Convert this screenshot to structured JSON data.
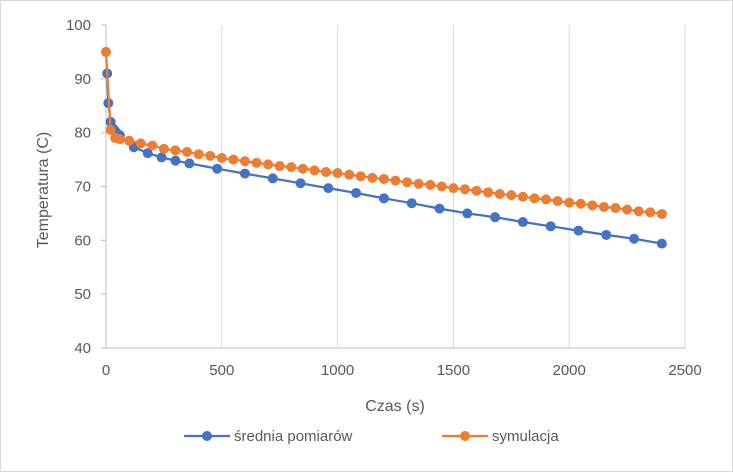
{
  "chart_data": {
    "type": "line",
    "title": "",
    "xlabel": "Czas (s)",
    "ylabel": "Temperatura (C)",
    "xlim": [
      0,
      2500
    ],
    "ylim": [
      40,
      100
    ],
    "xticks": [
      0,
      500,
      1000,
      1500,
      2000,
      2500
    ],
    "yticks": [
      40,
      50,
      60,
      70,
      80,
      90,
      100
    ],
    "grid": "vertical",
    "legend": "bottom",
    "series": [
      {
        "name": "średnia pomiarów",
        "color": "#4472c4",
        "x": [
          5,
          10,
          20,
          30,
          40,
          50,
          60,
          120,
          180,
          240,
          300,
          360,
          480,
          600,
          720,
          840,
          960,
          1080,
          1200,
          1320,
          1440,
          1560,
          1680,
          1800,
          1920,
          2040,
          2160,
          2280,
          2400
        ],
        "y": [
          91,
          85.5,
          82,
          80.8,
          80.3,
          79.8,
          79.5,
          77.3,
          76.2,
          75.4,
          74.8,
          74.3,
          73.3,
          72.4,
          71.5,
          70.6,
          69.7,
          68.8,
          67.8,
          66.9,
          65.9,
          65.0,
          64.3,
          63.4,
          62.6,
          61.8,
          61.0,
          60.3,
          59.4
        ]
      },
      {
        "name": "symulacja",
        "color": "#ed7d31",
        "x": [
          0,
          20,
          40,
          60,
          100,
          150,
          200,
          250,
          300,
          350,
          400,
          450,
          500,
          550,
          600,
          650,
          700,
          750,
          800,
          850,
          900,
          950,
          1000,
          1050,
          1100,
          1150,
          1200,
          1250,
          1300,
          1350,
          1400,
          1450,
          1500,
          1550,
          1600,
          1650,
          1700,
          1750,
          1800,
          1850,
          1900,
          1950,
          2000,
          2050,
          2100,
          2150,
          2200,
          2250,
          2300,
          2350,
          2400
        ],
        "y": [
          95,
          80.5,
          79.0,
          78.8,
          78.5,
          78.0,
          77.6,
          77.0,
          76.7,
          76.4,
          76.0,
          75.7,
          75.3,
          75.0,
          74.7,
          74.4,
          74.1,
          73.8,
          73.6,
          73.3,
          73.0,
          72.7,
          72.5,
          72.2,
          71.9,
          71.6,
          71.4,
          71.1,
          70.8,
          70.5,
          70.3,
          70.0,
          69.7,
          69.5,
          69.2,
          68.9,
          68.6,
          68.4,
          68.1,
          67.8,
          67.6,
          67.3,
          67.0,
          66.8,
          66.5,
          66.2,
          66.0,
          65.7,
          65.4,
          65.2,
          64.9
        ]
      }
    ]
  }
}
